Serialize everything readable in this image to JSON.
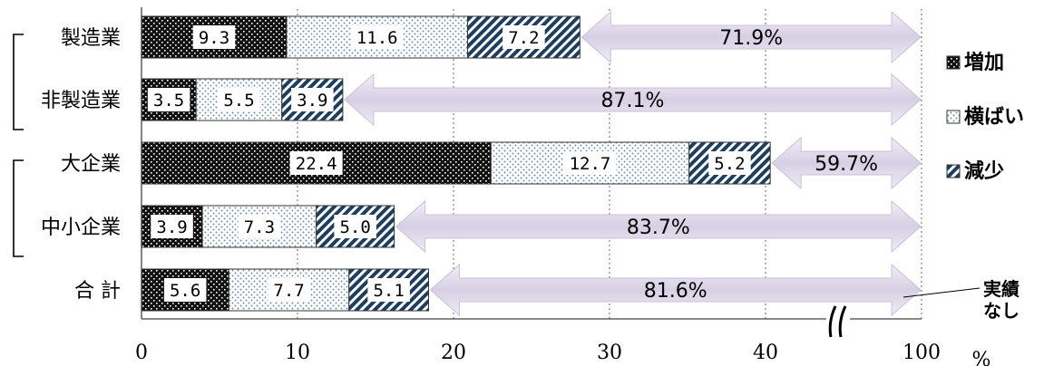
{
  "chart_data": {
    "type": "bar",
    "orientation": "horizontal",
    "stacked": true,
    "categories": [
      "製造業",
      "非製造業",
      "大企業",
      "中小企業",
      "合 計"
    ],
    "series": [
      {
        "name": "増加",
        "values": [
          9.3,
          3.5,
          22.4,
          3.9,
          5.6
        ],
        "value_labels": [
          "9.3",
          "3.5",
          "22.4",
          "3.9",
          "5.6"
        ]
      },
      {
        "name": "横ばい",
        "values": [
          11.6,
          5.5,
          12.7,
          7.3,
          7.7
        ],
        "value_labels": [
          "11.6",
          "5.5",
          "12.7",
          "7.3",
          "7.7"
        ]
      },
      {
        "name": "減少",
        "values": [
          7.2,
          3.9,
          5.2,
          5.0,
          5.1
        ],
        "value_labels": [
          "7.2",
          "3.9",
          "5.2",
          "5.0",
          "5.1"
        ]
      }
    ],
    "remainder": {
      "values": [
        71.9,
        87.1,
        59.7,
        83.7,
        81.6
      ],
      "labels": [
        "71.9%",
        "87.1%",
        "59.7%",
        "83.7%",
        "81.6%"
      ]
    },
    "x_ticks": [
      "0",
      "10",
      "20",
      "30",
      "40",
      "100"
    ],
    "x_unit": "%",
    "axis_break": true,
    "legend_position": "right",
    "annotation": "実績なし",
    "colors": {
      "increase": "#111111",
      "flat": "#9fb3c8",
      "decrease": "#1f3d5c",
      "arrow": "#d9d3e6"
    }
  }
}
